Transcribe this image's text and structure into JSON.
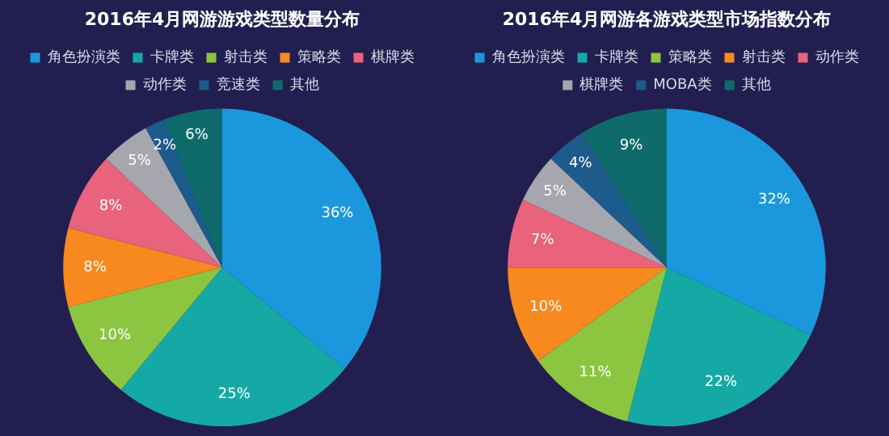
{
  "chart_data": [
    {
      "type": "pie",
      "title": "2016年4月网游游戏类型数量分布",
      "categories": [
        "角色扮演类",
        "卡牌类",
        "射击类",
        "策略类",
        "棋牌类",
        "动作类",
        "竞速类",
        "其他"
      ],
      "values": [
        36,
        25,
        10,
        8,
        8,
        5,
        2,
        6
      ],
      "colors": [
        "#1b97dd",
        "#15a9a6",
        "#8cc540",
        "#f7891e",
        "#e8637b",
        "#a6a6ae",
        "#1d5b8c",
        "#0f6b6b"
      ],
      "value_labels": [
        "36%",
        "25%",
        "10%",
        "8%",
        "8%",
        "5%",
        "2%",
        "6%"
      ],
      "legend": "top"
    },
    {
      "type": "pie",
      "title": "2016年4月网游各游戏类型市场指数分布",
      "categories": [
        "角色扮演类",
        "卡牌类",
        "策略类",
        "射击类",
        "动作类",
        "棋牌类",
        "MOBA类",
        "其他"
      ],
      "values": [
        32,
        22,
        11,
        10,
        7,
        5,
        4,
        9
      ],
      "colors": [
        "#1b97dd",
        "#15a9a6",
        "#8cc540",
        "#f7891e",
        "#e8637b",
        "#a6a6ae",
        "#1d5b8c",
        "#0f6b6b"
      ],
      "value_labels": [
        "32%",
        "22%",
        "11%",
        "10%",
        "7%",
        "5%",
        "4%",
        "9%"
      ],
      "legend": "top"
    }
  ]
}
